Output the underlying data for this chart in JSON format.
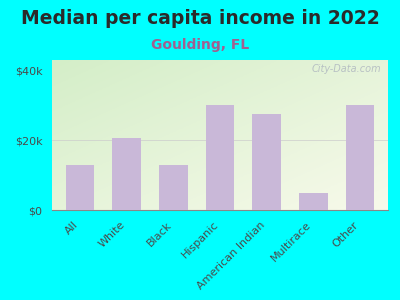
{
  "title": "Median per capita income in 2022",
  "subtitle": "Goulding, FL",
  "categories": [
    "All",
    "White",
    "Black",
    "Hispanic",
    "American Indian",
    "Multirace",
    "Other"
  ],
  "values": [
    13000,
    20500,
    13000,
    30000,
    27500,
    5000,
    30000
  ],
  "bar_color": "#c9b8d8",
  "background_outer": "#00FFFF",
  "title_color": "#2a2a2a",
  "subtitle_color": "#a06090",
  "tick_label_color": "#4a4a4a",
  "ytick_labels": [
    "$0",
    "$20k",
    "$40k"
  ],
  "ytick_values": [
    0,
    20000,
    40000
  ],
  "ylim": [
    0,
    43000
  ],
  "watermark": "City-Data.com",
  "title_fontsize": 13.5,
  "subtitle_fontsize": 10,
  "tick_fontsize": 8
}
